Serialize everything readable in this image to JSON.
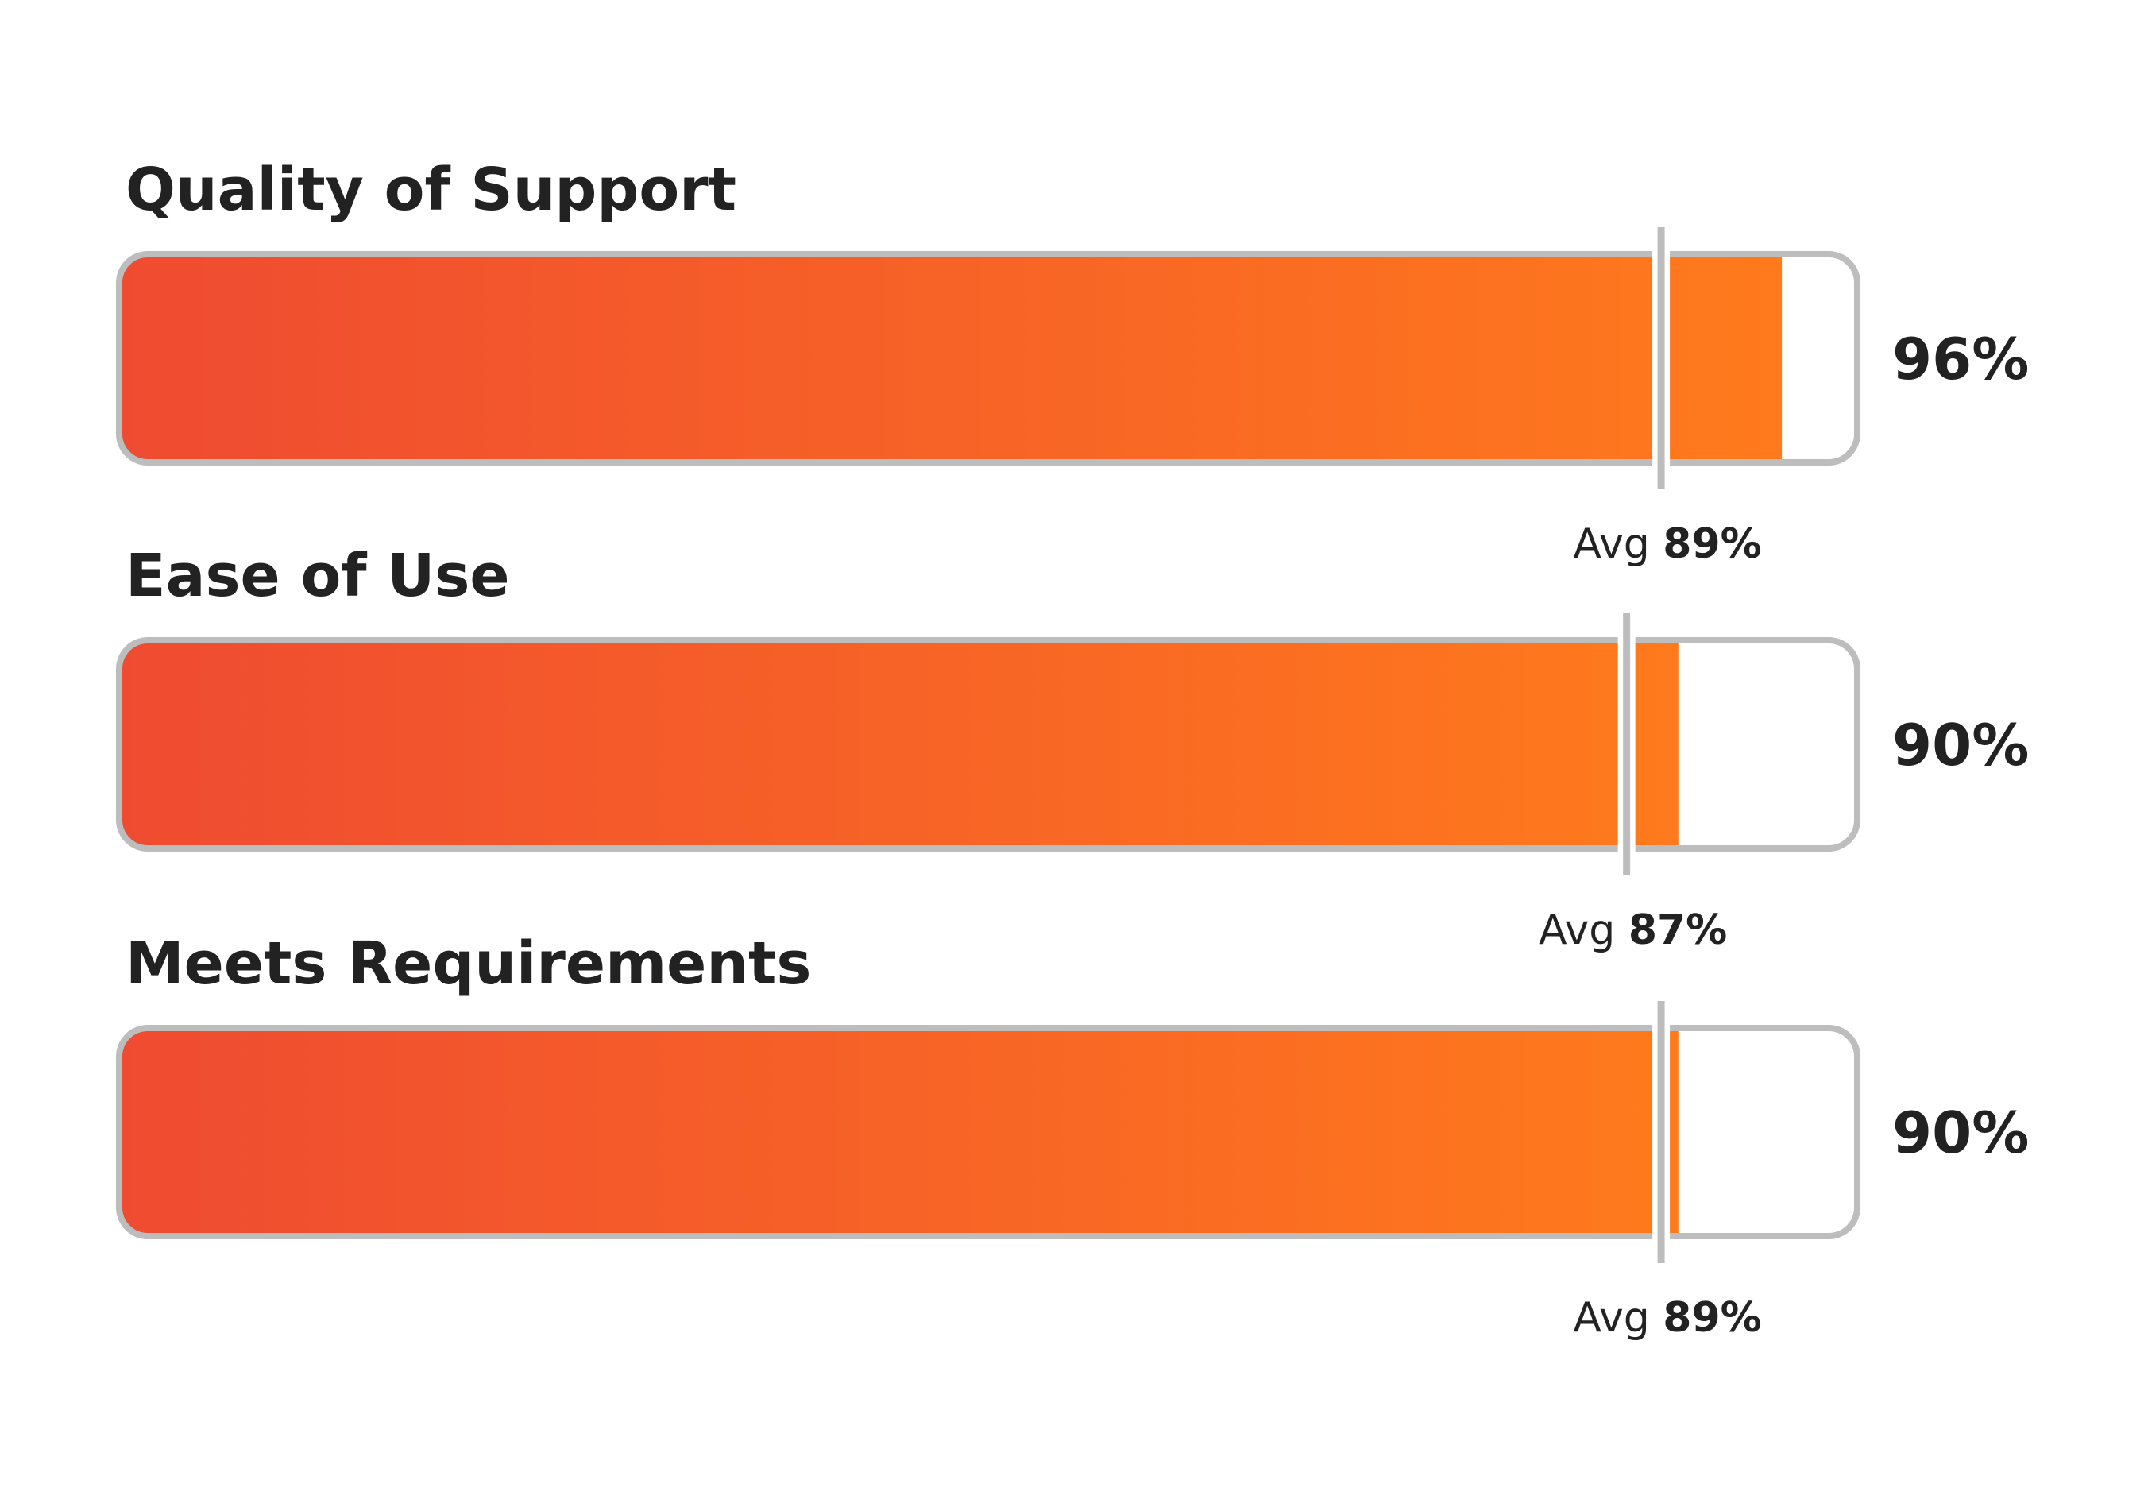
{
  "chart_data": {
    "type": "bar",
    "orientation": "horizontal",
    "categories": [
      "Quality of Support",
      "Ease of Use",
      "Meets Requirements"
    ],
    "values": [
      96,
      90,
      90
    ],
    "value_labels": [
      "96%",
      "90%",
      "90%"
    ],
    "averages": [
      89,
      87,
      89
    ],
    "avg_prefix": "Avg",
    "avg_labels": [
      "89%",
      "87%",
      "89%"
    ],
    "xlim": [
      0,
      100
    ],
    "unit": "%",
    "grid": false,
    "legend": "none",
    "colors": {
      "fill_start": "#EF4B31",
      "fill_end": "#FF7A1C",
      "track_border": "#BDBDBD",
      "avg_marker": "#BDBDBD",
      "text": "#222222"
    }
  }
}
